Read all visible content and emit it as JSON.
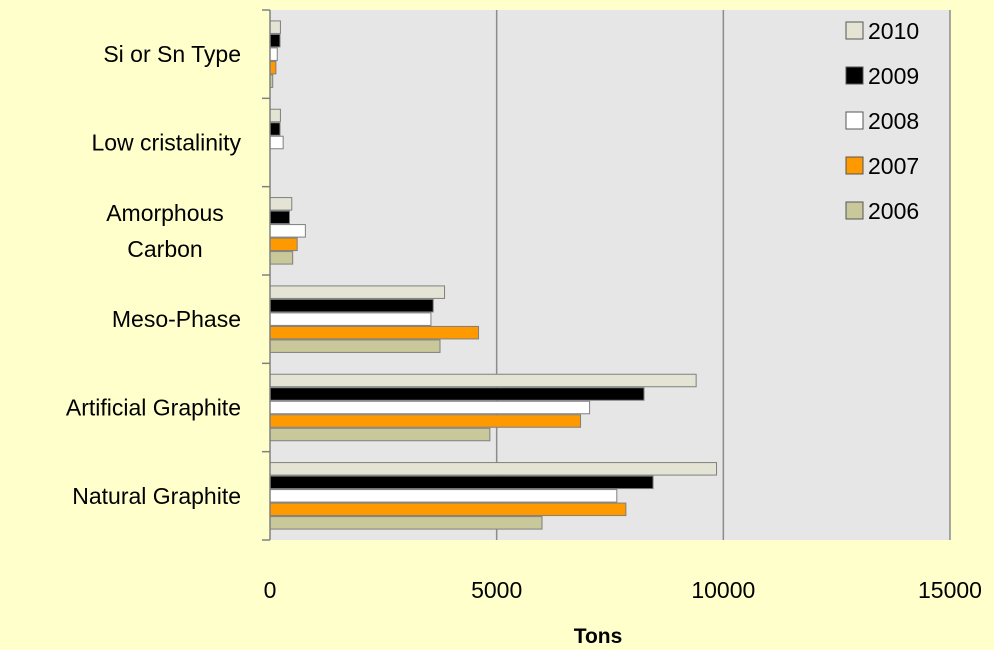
{
  "chart_data": {
    "type": "bar",
    "orientation": "horizontal",
    "categories": [
      "Si or Sn Type",
      "Low cristalinity",
      "Amorphous Carbon",
      "Meso-Phase",
      "Artificial Graphite",
      "Natural Graphite"
    ],
    "category_lines": [
      [
        "Si or Sn Type"
      ],
      [
        "Low cristalinity"
      ],
      [
        "Amorphous",
        "Carbon"
      ],
      [
        "Meso-Phase"
      ],
      [
        "Artificial Graphite"
      ],
      [
        "Natural Graphite"
      ]
    ],
    "series": [
      {
        "name": "2010",
        "color": "#e4e4d4",
        "values": [
          230,
          230,
          480,
          3850,
          9400,
          9850
        ]
      },
      {
        "name": "2009",
        "color": "#000000",
        "values": [
          220,
          220,
          430,
          3600,
          8250,
          8450
        ]
      },
      {
        "name": "2008",
        "color": "#ffffff",
        "values": [
          160,
          290,
          780,
          3550,
          7050,
          7650
        ]
      },
      {
        "name": "2007",
        "color": "#ff9900",
        "values": [
          130,
          0,
          600,
          4600,
          6850,
          7850
        ]
      },
      {
        "name": "2006",
        "color": "#c8c89a",
        "values": [
          60,
          0,
          500,
          3750,
          4850,
          6000
        ]
      }
    ],
    "xlabel": "Tons",
    "ylabel": "",
    "title": "",
    "xlim": [
      0,
      15000
    ],
    "xticks": [
      0,
      5000,
      10000,
      15000
    ],
    "xtick_labels": [
      "0",
      "5000",
      "10000",
      "15000"
    ],
    "grid": true,
    "legend_position": "top-right",
    "colors": {
      "page_background": "#ffffcc",
      "plot_background": "#e6e6e6",
      "gridline": "#8c8c8c",
      "bar_outline": "#7f7f7f"
    }
  }
}
